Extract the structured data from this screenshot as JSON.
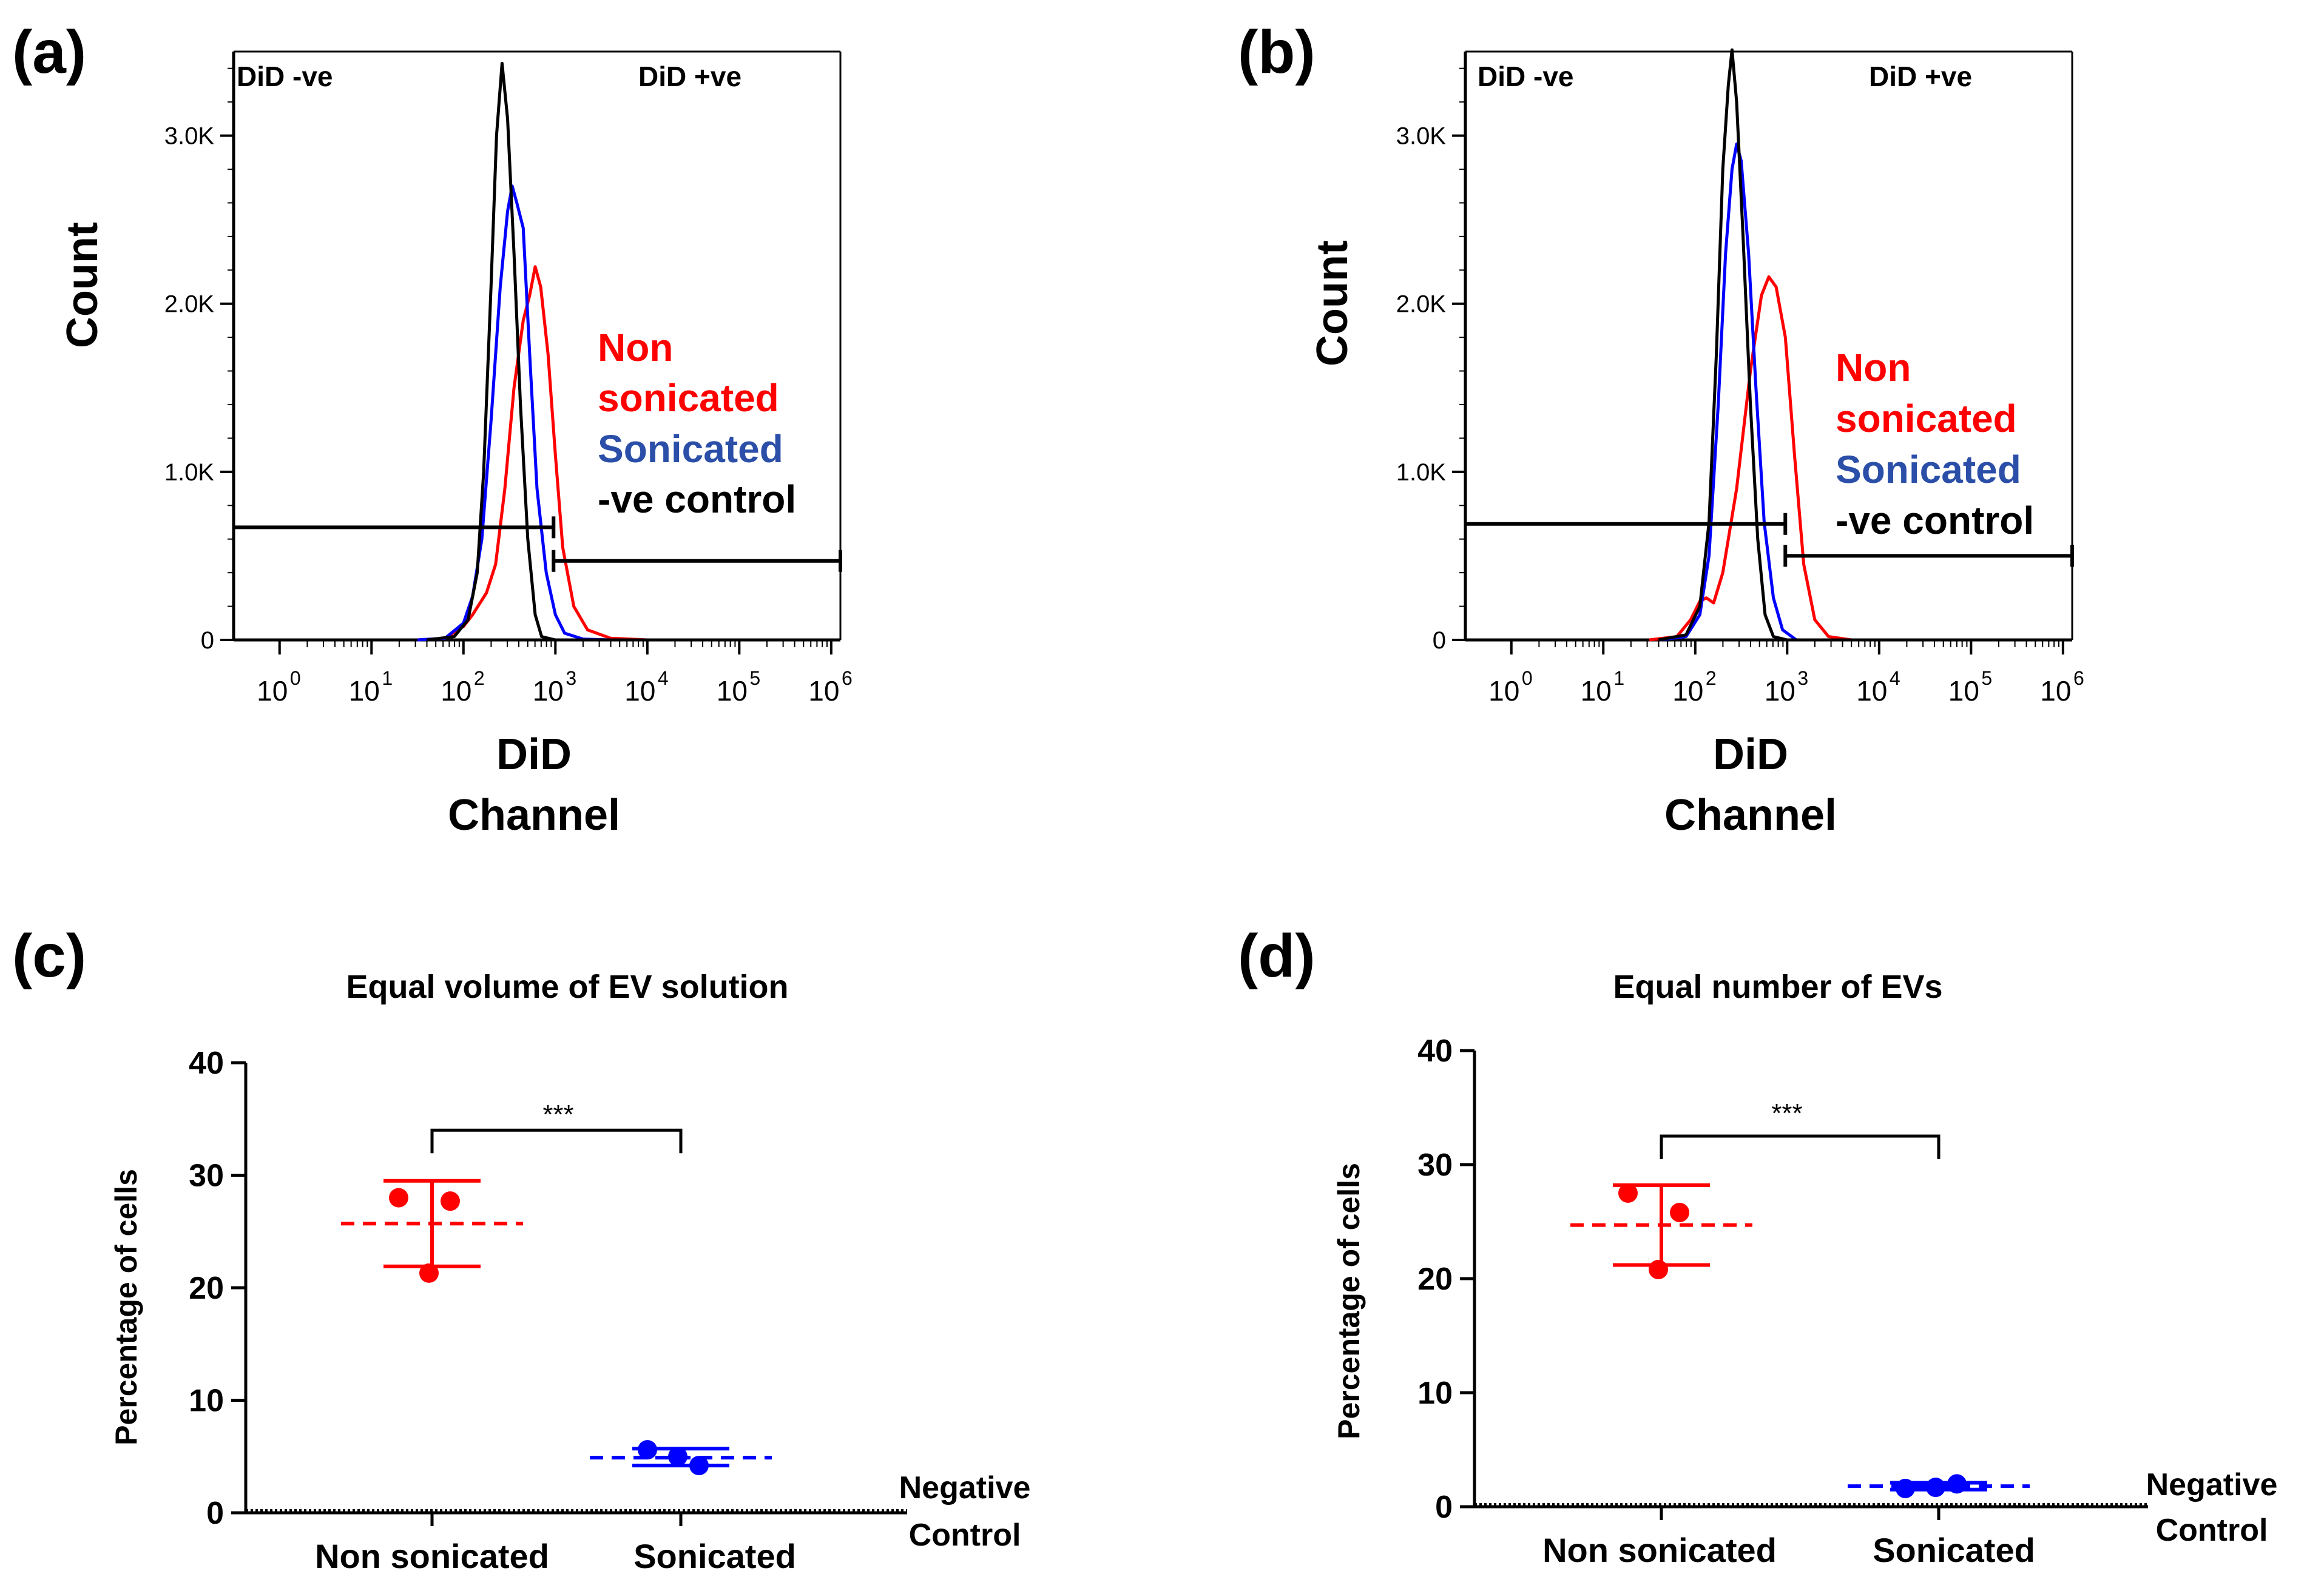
{
  "panels": {
    "a": {
      "label": "(a)"
    },
    "b": {
      "label": "(b)"
    },
    "c": {
      "label": "(c)"
    },
    "d": {
      "label": "(d)"
    }
  },
  "colors": {
    "nonsonicated": "#ff0000",
    "sonicated": "#0000ff",
    "sonicated_text": "#2b4fa8",
    "control": "#000000",
    "axis": "#000000"
  },
  "chart_data": [
    {
      "id": "a",
      "type": "line",
      "title": "",
      "xlabel_line1": "DiD",
      "xlabel_line2": "Channel",
      "ylabel": "Count",
      "x_scale": "log10",
      "xlim_log10": [
        -0.5,
        6.1
      ],
      "ylim": [
        0,
        3500
      ],
      "x_ticks": [
        {
          "base": "10",
          "exp": "0",
          "log": 0
        },
        {
          "base": "10",
          "exp": "1",
          "log": 1
        },
        {
          "base": "10",
          "exp": "2",
          "log": 2
        },
        {
          "base": "10",
          "exp": "3",
          "log": 3
        },
        {
          "base": "10",
          "exp": "4",
          "log": 4
        },
        {
          "base": "10",
          "exp": "5",
          "log": 5
        },
        {
          "base": "10",
          "exp": "6",
          "log": 6
        }
      ],
      "y_ticks": [
        {
          "label": "0",
          "value": 0
        },
        {
          "label": "1.0K",
          "value": 1000
        },
        {
          "label": "2.0K",
          "value": 2000
        },
        {
          "label": "3.0K",
          "value": 3000
        }
      ],
      "gate_neg_label": "DiD -ve",
      "gate_pos_label": "DiD +ve",
      "gates": {
        "neg": {
          "from_log": -0.5,
          "to_log": 2.98,
          "y": 670
        },
        "pos": {
          "from_log": 2.98,
          "to_log": 6.1,
          "y": 470
        }
      },
      "legend": [
        "Non",
        "sonicated",
        "Sonicated",
        "-ve control"
      ],
      "series": [
        {
          "name": "Non sonicated",
          "points": [
            [
              1.5,
              0
            ],
            [
              1.8,
              10
            ],
            [
              2.0,
              80
            ],
            [
              2.1,
              150
            ],
            [
              2.25,
              280
            ],
            [
              2.35,
              450
            ],
            [
              2.45,
              900
            ],
            [
              2.55,
              1500
            ],
            [
              2.65,
              1900
            ],
            [
              2.72,
              2050
            ],
            [
              2.78,
              2220
            ],
            [
              2.84,
              2100
            ],
            [
              2.92,
              1700
            ],
            [
              3.0,
              1100
            ],
            [
              3.08,
              550
            ],
            [
              3.2,
              200
            ],
            [
              3.35,
              60
            ],
            [
              3.6,
              10
            ],
            [
              4.0,
              0
            ],
            [
              6.1,
              0
            ]
          ]
        },
        {
          "name": "Sonicated",
          "points": [
            [
              1.5,
              0
            ],
            [
              1.8,
              10
            ],
            [
              2.0,
              100
            ],
            [
              2.1,
              260
            ],
            [
              2.2,
              600
            ],
            [
              2.3,
              1300
            ],
            [
              2.4,
              2100
            ],
            [
              2.48,
              2550
            ],
            [
              2.53,
              2700
            ],
            [
              2.58,
              2600
            ],
            [
              2.65,
              2450
            ],
            [
              2.72,
              1700
            ],
            [
              2.8,
              900
            ],
            [
              2.9,
              400
            ],
            [
              3.0,
              150
            ],
            [
              3.1,
              40
            ],
            [
              3.3,
              5
            ],
            [
              3.6,
              0
            ],
            [
              6.1,
              0
            ]
          ]
        },
        {
          "name": "-ve control",
          "points": [
            [
              1.6,
              0
            ],
            [
              1.9,
              20
            ],
            [
              2.05,
              120
            ],
            [
              2.15,
              400
            ],
            [
              2.22,
              1000
            ],
            [
              2.3,
              2100
            ],
            [
              2.36,
              3000
            ],
            [
              2.42,
              3430
            ],
            [
              2.48,
              3100
            ],
            [
              2.55,
              2300
            ],
            [
              2.62,
              1400
            ],
            [
              2.7,
              600
            ],
            [
              2.78,
              150
            ],
            [
              2.85,
              20
            ],
            [
              3.0,
              0
            ],
            [
              6.1,
              0
            ]
          ]
        }
      ]
    },
    {
      "id": "b",
      "type": "line",
      "title": "",
      "xlabel_line1": "DiD",
      "xlabel_line2": "Channel",
      "ylabel": "Count",
      "x_scale": "log10",
      "xlim_log10": [
        -0.5,
        6.1
      ],
      "ylim": [
        0,
        3500
      ],
      "x_ticks": [
        {
          "base": "10",
          "exp": "0",
          "log": 0
        },
        {
          "base": "10",
          "exp": "1",
          "log": 1
        },
        {
          "base": "10",
          "exp": "2",
          "log": 2
        },
        {
          "base": "10",
          "exp": "3",
          "log": 3
        },
        {
          "base": "10",
          "exp": "4",
          "log": 4
        },
        {
          "base": "10",
          "exp": "5",
          "log": 5
        },
        {
          "base": "10",
          "exp": "6",
          "log": 6
        }
      ],
      "y_ticks": [
        {
          "label": "0",
          "value": 0
        },
        {
          "label": "1.0K",
          "value": 1000
        },
        {
          "label": "2.0K",
          "value": 2000
        },
        {
          "label": "3.0K",
          "value": 3000
        }
      ],
      "gate_neg_label": "DiD -ve",
      "gate_pos_label": "DiD +ve",
      "gates": {
        "neg": {
          "from_log": -0.5,
          "to_log": 2.98,
          "y": 690
        },
        "pos": {
          "from_log": 2.98,
          "to_log": 6.1,
          "y": 500
        }
      },
      "legend": [
        "Non",
        "sonicated",
        "Sonicated",
        "-ve control"
      ],
      "series": [
        {
          "name": "Non sonicated",
          "points": [
            [
              1.5,
              0
            ],
            [
              1.8,
              20
            ],
            [
              1.95,
              120
            ],
            [
              2.05,
              230
            ],
            [
              2.12,
              250
            ],
            [
              2.2,
              220
            ],
            [
              2.3,
              400
            ],
            [
              2.45,
              900
            ],
            [
              2.6,
              1600
            ],
            [
              2.72,
              2050
            ],
            [
              2.8,
              2160
            ],
            [
              2.88,
              2100
            ],
            [
              2.98,
              1800
            ],
            [
              3.08,
              1100
            ],
            [
              3.18,
              450
            ],
            [
              3.3,
              120
            ],
            [
              3.45,
              20
            ],
            [
              3.7,
              0
            ],
            [
              6.1,
              0
            ]
          ]
        },
        {
          "name": "Sonicated",
          "points": [
            [
              1.6,
              0
            ],
            [
              1.9,
              20
            ],
            [
              2.05,
              150
            ],
            [
              2.15,
              500
            ],
            [
              2.25,
              1400
            ],
            [
              2.33,
              2300
            ],
            [
              2.4,
              2800
            ],
            [
              2.45,
              2950
            ],
            [
              2.5,
              2850
            ],
            [
              2.58,
              2300
            ],
            [
              2.66,
              1500
            ],
            [
              2.75,
              700
            ],
            [
              2.85,
              250
            ],
            [
              2.95,
              60
            ],
            [
              3.1,
              0
            ],
            [
              6.1,
              0
            ]
          ]
        },
        {
          "name": "-ve control",
          "points": [
            [
              1.6,
              0
            ],
            [
              1.9,
              30
            ],
            [
              2.05,
              200
            ],
            [
              2.15,
              700
            ],
            [
              2.23,
              1700
            ],
            [
              2.3,
              2800
            ],
            [
              2.36,
              3300
            ],
            [
              2.4,
              3510
            ],
            [
              2.45,
              3200
            ],
            [
              2.52,
              2400
            ],
            [
              2.6,
              1400
            ],
            [
              2.68,
              600
            ],
            [
              2.76,
              150
            ],
            [
              2.85,
              20
            ],
            [
              3.0,
              0
            ],
            [
              6.1,
              0
            ]
          ]
        }
      ]
    },
    {
      "id": "c",
      "type": "scatter",
      "title": "Equal volume of EV solution",
      "xlabel": "",
      "ylabel": "Percentage of cells",
      "ylim": [
        0,
        40
      ],
      "y_ticks": [
        "0",
        "10",
        "20",
        "30",
        "40"
      ],
      "categories": [
        "Non sonicated",
        "Sonicated"
      ],
      "series": [
        {
          "name": "Non sonicated",
          "points": [
            28.0,
            27.7,
            21.3
          ],
          "mean": 25.7,
          "err_low": 21.9,
          "err_high": 29.5
        },
        {
          "name": "Sonicated",
          "points": [
            5.6,
            4.2,
            5.0
          ],
          "mean": 4.9,
          "err_low": 4.2,
          "err_high": 5.7
        }
      ],
      "negative_control_label": [
        "Negative",
        "Control"
      ],
      "negative_control_value": 0,
      "significance": "***",
      "significance_y": 34
    },
    {
      "id": "d",
      "type": "scatter",
      "title": "Equal number of EVs",
      "xlabel": "",
      "ylabel": "Percentage of cells",
      "ylim": [
        0,
        40
      ],
      "y_ticks": [
        "0",
        "10",
        "20",
        "30",
        "40"
      ],
      "categories": [
        "Non sonicated",
        "Sonicated"
      ],
      "series": [
        {
          "name": "Non sonicated",
          "points": [
            27.5,
            25.8,
            20.8
          ],
          "mean": 24.7,
          "err_low": 21.2,
          "err_high": 28.2
        },
        {
          "name": "Sonicated",
          "points": [
            1.6,
            2.0,
            1.7
          ],
          "mean": 1.8,
          "err_low": 1.5,
          "err_high": 2.1
        }
      ],
      "negative_control_label": [
        "Negative",
        "Control"
      ],
      "negative_control_value": 0,
      "significance": "***",
      "significance_y": 32.5
    }
  ]
}
